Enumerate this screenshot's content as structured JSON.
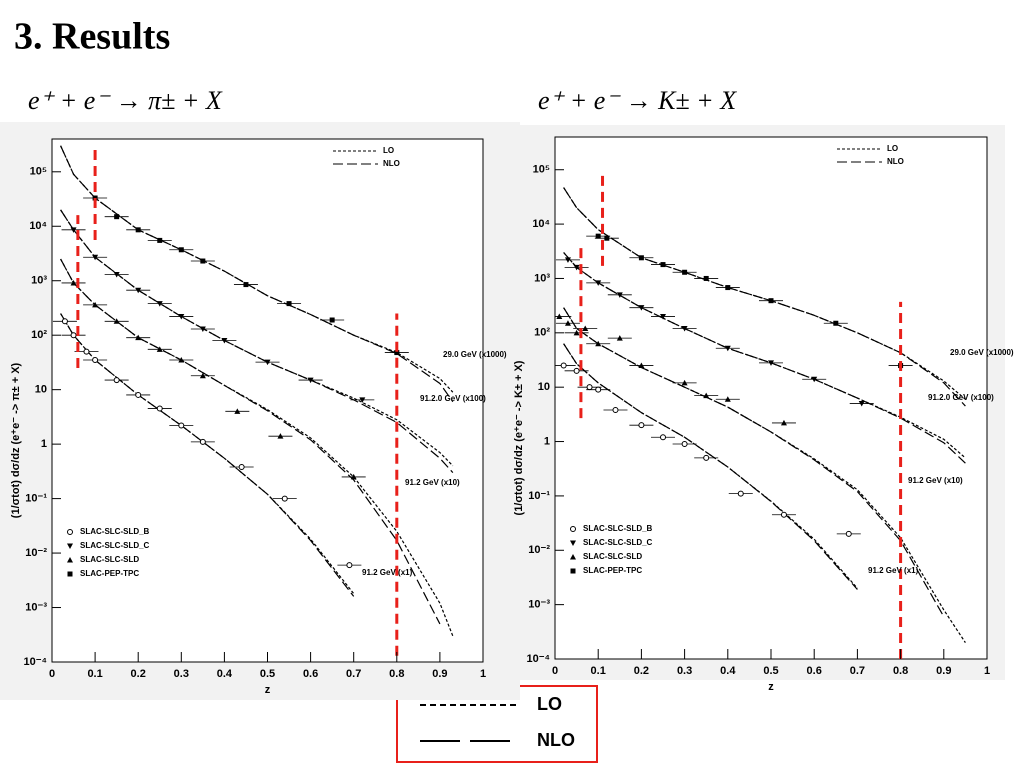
{
  "title": "3. Results",
  "legend_box": [
    "LO",
    "NLO"
  ],
  "chart_data": [
    {
      "type": "line",
      "subtitle": "e⁺ + e⁻ → π± + X",
      "x_label": "z",
      "y_label": "(1/σtot) dσ/dz (e⁺e⁻ -> π± + X)",
      "log_y": true,
      "xlim": [
        0,
        1
      ],
      "ylim": [
        0.0001,
        400000
      ],
      "xticks": [
        0,
        0.1,
        0.2,
        0.3,
        0.4,
        0.5,
        0.6,
        0.7,
        0.8,
        0.9,
        1
      ],
      "yticks": [
        {
          "value": 0.0001,
          "label": "10⁻⁴"
        },
        {
          "value": 0.001,
          "label": "10⁻³"
        },
        {
          "value": 0.01,
          "label": "10⁻²"
        },
        {
          "value": 0.1,
          "label": "10⁻¹"
        },
        1,
        10,
        {
          "value": 100,
          "label": "10²"
        },
        {
          "value": 1000,
          "label": "10³"
        },
        {
          "value": 10000,
          "label": "10⁴"
        },
        {
          "value": 100000,
          "label": "10⁵"
        }
      ],
      "legend": [
        "LO",
        "NLO"
      ],
      "x": [
        0.02,
        0.05,
        0.1,
        0.2,
        0.3,
        0.4,
        0.5,
        0.6,
        0.7,
        0.8,
        0.9,
        0.93
      ],
      "curves": [
        {
          "label": "29.0 GeV (x1000)",
          "lo": [
            300000,
            90000,
            33000,
            8600,
            3700,
            1500,
            530,
            240,
            100,
            48,
            16,
            9
          ],
          "nlo": [
            300000,
            90000,
            33000,
            8600,
            3700,
            1500,
            530,
            240,
            100,
            46,
            13,
            6
          ]
        },
        {
          "label": "91.2.0 GeV (x100)",
          "lo": [
            20000,
            8600,
            2700,
            670,
            220,
            80,
            32,
            15,
            7,
            2.8,
            0.7,
            0.4
          ],
          "nlo": [
            20000,
            8600,
            2700,
            670,
            220,
            80,
            32,
            15,
            6.5,
            2.5,
            0.55,
            0.3
          ]
        },
        {
          "label": "91.2 GeV (x10)",
          "lo": [
            2500,
            910,
            360,
            90,
            35,
            12,
            4.3,
            1.3,
            0.25,
            0.025,
            0.0012,
            0.0003
          ],
          "nlo": [
            2500,
            910,
            360,
            90,
            35,
            12,
            4.1,
            1.2,
            0.22,
            0.017,
            0.0005,
            null
          ]
        },
        {
          "label": "91.2 GeV (x1)",
          "lo": [
            250,
            100,
            35,
            8,
            2.2,
            0.55,
            0.12,
            0.018,
            0.0018,
            null,
            null,
            null
          ],
          "nlo": [
            250,
            100,
            35,
            8,
            2.2,
            0.55,
            0.12,
            0.017,
            0.0016,
            null,
            null,
            null
          ]
        }
      ],
      "experiments": [
        {
          "name": "SLAC-SLC-SLD_B",
          "marker": "circle"
        },
        {
          "name": "SLAC-SLC-SLD_C",
          "marker": "triangle-down"
        },
        {
          "name": "SLAC-SLC-SLD",
          "marker": "triangle"
        },
        {
          "name": "SLAC-PEP-TPC",
          "marker": "square"
        }
      ],
      "points": [
        {
          "marker": "square",
          "x": [
            0.1,
            0.15,
            0.2,
            0.25,
            0.3,
            0.35,
            0.45,
            0.55,
            0.65,
            0.8
          ],
          "y": [
            33000,
            15000,
            8600,
            5500,
            3700,
            2300,
            850,
            380,
            190,
            48
          ]
        },
        {
          "marker": "triangle-down",
          "x": [
            0.05,
            0.1,
            0.15,
            0.2,
            0.25,
            0.3,
            0.35,
            0.4,
            0.5,
            0.6,
            0.72
          ],
          "y": [
            8600,
            2700,
            1300,
            670,
            380,
            220,
            130,
            80,
            32,
            15,
            6.5
          ]
        },
        {
          "marker": "triangle",
          "x": [
            0.05,
            0.1,
            0.15,
            0.2,
            0.25,
            0.3,
            0.35,
            0.43,
            0.53,
            0.7
          ],
          "y": [
            910,
            360,
            180,
            90,
            55,
            35,
            18,
            4,
            1.4,
            0.25
          ]
        },
        {
          "marker": "circle",
          "x": [
            0.03,
            0.05,
            0.08,
            0.1,
            0.15,
            0.2,
            0.25,
            0.3,
            0.35,
            0.44,
            0.54,
            0.69
          ],
          "y": [
            180,
            100,
            50,
            35,
            15,
            8,
            4.5,
            2.2,
            1.1,
            0.38,
            0.1,
            0.006
          ]
        }
      ],
      "vlines": [
        {
          "x": 0.06,
          "y": [
            25,
            16000
          ]
        },
        {
          "x": 0.1,
          "y": [
            5600,
            280000
          ]
        },
        {
          "x": 0.8,
          "y": [
            0.00013,
            250
          ]
        }
      ],
      "vline_color": "#e8201a"
    },
    {
      "type": "line",
      "subtitle": "e⁺ + e⁻ → K± + X",
      "x_label": "z",
      "y_label": "(1/σtot) dσ/dz (e⁺e⁻ -> K± + X)",
      "log_y": true,
      "xlim": [
        0,
        1
      ],
      "ylim": [
        0.0001,
        400000
      ],
      "xticks": [
        0,
        0.1,
        0.2,
        0.3,
        0.4,
        0.5,
        0.6,
        0.7,
        0.8,
        0.9,
        1
      ],
      "yticks": [
        {
          "value": 0.0001,
          "label": "10⁻⁴"
        },
        {
          "value": 0.001,
          "label": "10⁻³"
        },
        {
          "value": 0.01,
          "label": "10⁻²"
        },
        {
          "value": 0.1,
          "label": "10⁻¹"
        },
        1,
        10,
        {
          "value": 100,
          "label": "10²"
        },
        {
          "value": 1000,
          "label": "10³"
        },
        {
          "value": 10000,
          "label": "10⁴"
        },
        {
          "value": 100000,
          "label": "10⁵"
        }
      ],
      "legend": [
        "LO",
        "NLO"
      ],
      "x": [
        0.02,
        0.05,
        0.1,
        0.2,
        0.3,
        0.4,
        0.5,
        0.6,
        0.7,
        0.8,
        0.9,
        0.95
      ],
      "curves": [
        {
          "label": "29.0 GeV (x1000)",
          "lo": [
            47000,
            20000,
            7900,
            2400,
            1300,
            680,
            390,
            210,
            100,
            43,
            13,
            6
          ],
          "nlo": [
            47000,
            20000,
            7900,
            2400,
            1300,
            680,
            390,
            210,
            100,
            43,
            12,
            4.5
          ]
        },
        {
          "label": "91.2.0 GeV (x100)",
          "lo": [
            3000,
            1600,
            830,
            290,
            120,
            52,
            28,
            14,
            6.3,
            2.8,
            1.1,
            0.5
          ],
          "nlo": [
            3000,
            1600,
            830,
            290,
            120,
            52,
            28,
            14,
            6.3,
            2.7,
            0.95,
            0.4
          ]
        },
        {
          "label": "91.2 GeV (x10)",
          "lo": [
            290,
            120,
            63,
            23,
            10,
            4.3,
            1.5,
            0.48,
            0.13,
            0.017,
            0.0008,
            0.0002
          ],
          "nlo": [
            290,
            120,
            63,
            23,
            10,
            4.3,
            1.5,
            0.46,
            0.12,
            0.015,
            0.0006,
            null
          ]
        },
        {
          "label": "91.2 GeV (x1)",
          "lo": [
            63,
            27,
            12,
            3.4,
            1.2,
            0.34,
            0.08,
            0.016,
            0.002,
            null,
            null,
            null
          ],
          "nlo": [
            63,
            27,
            12,
            3.4,
            1.2,
            0.34,
            0.079,
            0.015,
            0.0019,
            null,
            null,
            null
          ]
        }
      ],
      "experiments": [
        {
          "name": "SLAC-SLC-SLD_B",
          "marker": "circle"
        },
        {
          "name": "SLAC-SLC-SLD_C",
          "marker": "triangle-down"
        },
        {
          "name": "SLAC-SLC-SLD",
          "marker": "triangle"
        },
        {
          "name": "SLAC-PEP-TPC",
          "marker": "square"
        }
      ],
      "points": [
        {
          "marker": "square",
          "x": [
            0.1,
            0.12,
            0.2,
            0.25,
            0.3,
            0.35,
            0.4,
            0.5,
            0.65,
            0.8
          ],
          "y": [
            6000,
            5500,
            2400,
            1800,
            1300,
            1000,
            680,
            390,
            150,
            25
          ]
        },
        {
          "marker": "triangle-down",
          "x": [
            0.03,
            0.05,
            0.1,
            0.15,
            0.2,
            0.25,
            0.3,
            0.4,
            0.5,
            0.6,
            0.71
          ],
          "y": [
            2200,
            1600,
            830,
            500,
            290,
            200,
            120,
            52,
            28,
            14,
            5
          ]
        },
        {
          "marker": "triangle",
          "x": [
            0.01,
            0.03,
            0.05,
            0.07,
            0.1,
            0.15,
            0.2,
            0.3,
            0.35,
            0.4,
            0.53
          ],
          "y": [
            200,
            150,
            100,
            120,
            63,
            80,
            25,
            12,
            7,
            6,
            2.2
          ]
        },
        {
          "marker": "circle",
          "x": [
            0.02,
            0.05,
            0.08,
            0.1,
            0.14,
            0.2,
            0.25,
            0.3,
            0.35,
            0.43,
            0.53,
            0.68
          ],
          "y": [
            25,
            20,
            10,
            9,
            3.8,
            2,
            1.2,
            0.9,
            0.5,
            0.11,
            0.045,
            0.02
          ]
        }
      ],
      "vlines": [
        {
          "x": 0.06,
          "y": [
            2.7,
            4500
          ]
        },
        {
          "x": 0.11,
          "y": [
            1700,
            88000
          ]
        },
        {
          "x": 0.8,
          "y": [
            0.0001,
            370
          ]
        }
      ],
      "vline_color": "#e8201a"
    }
  ]
}
